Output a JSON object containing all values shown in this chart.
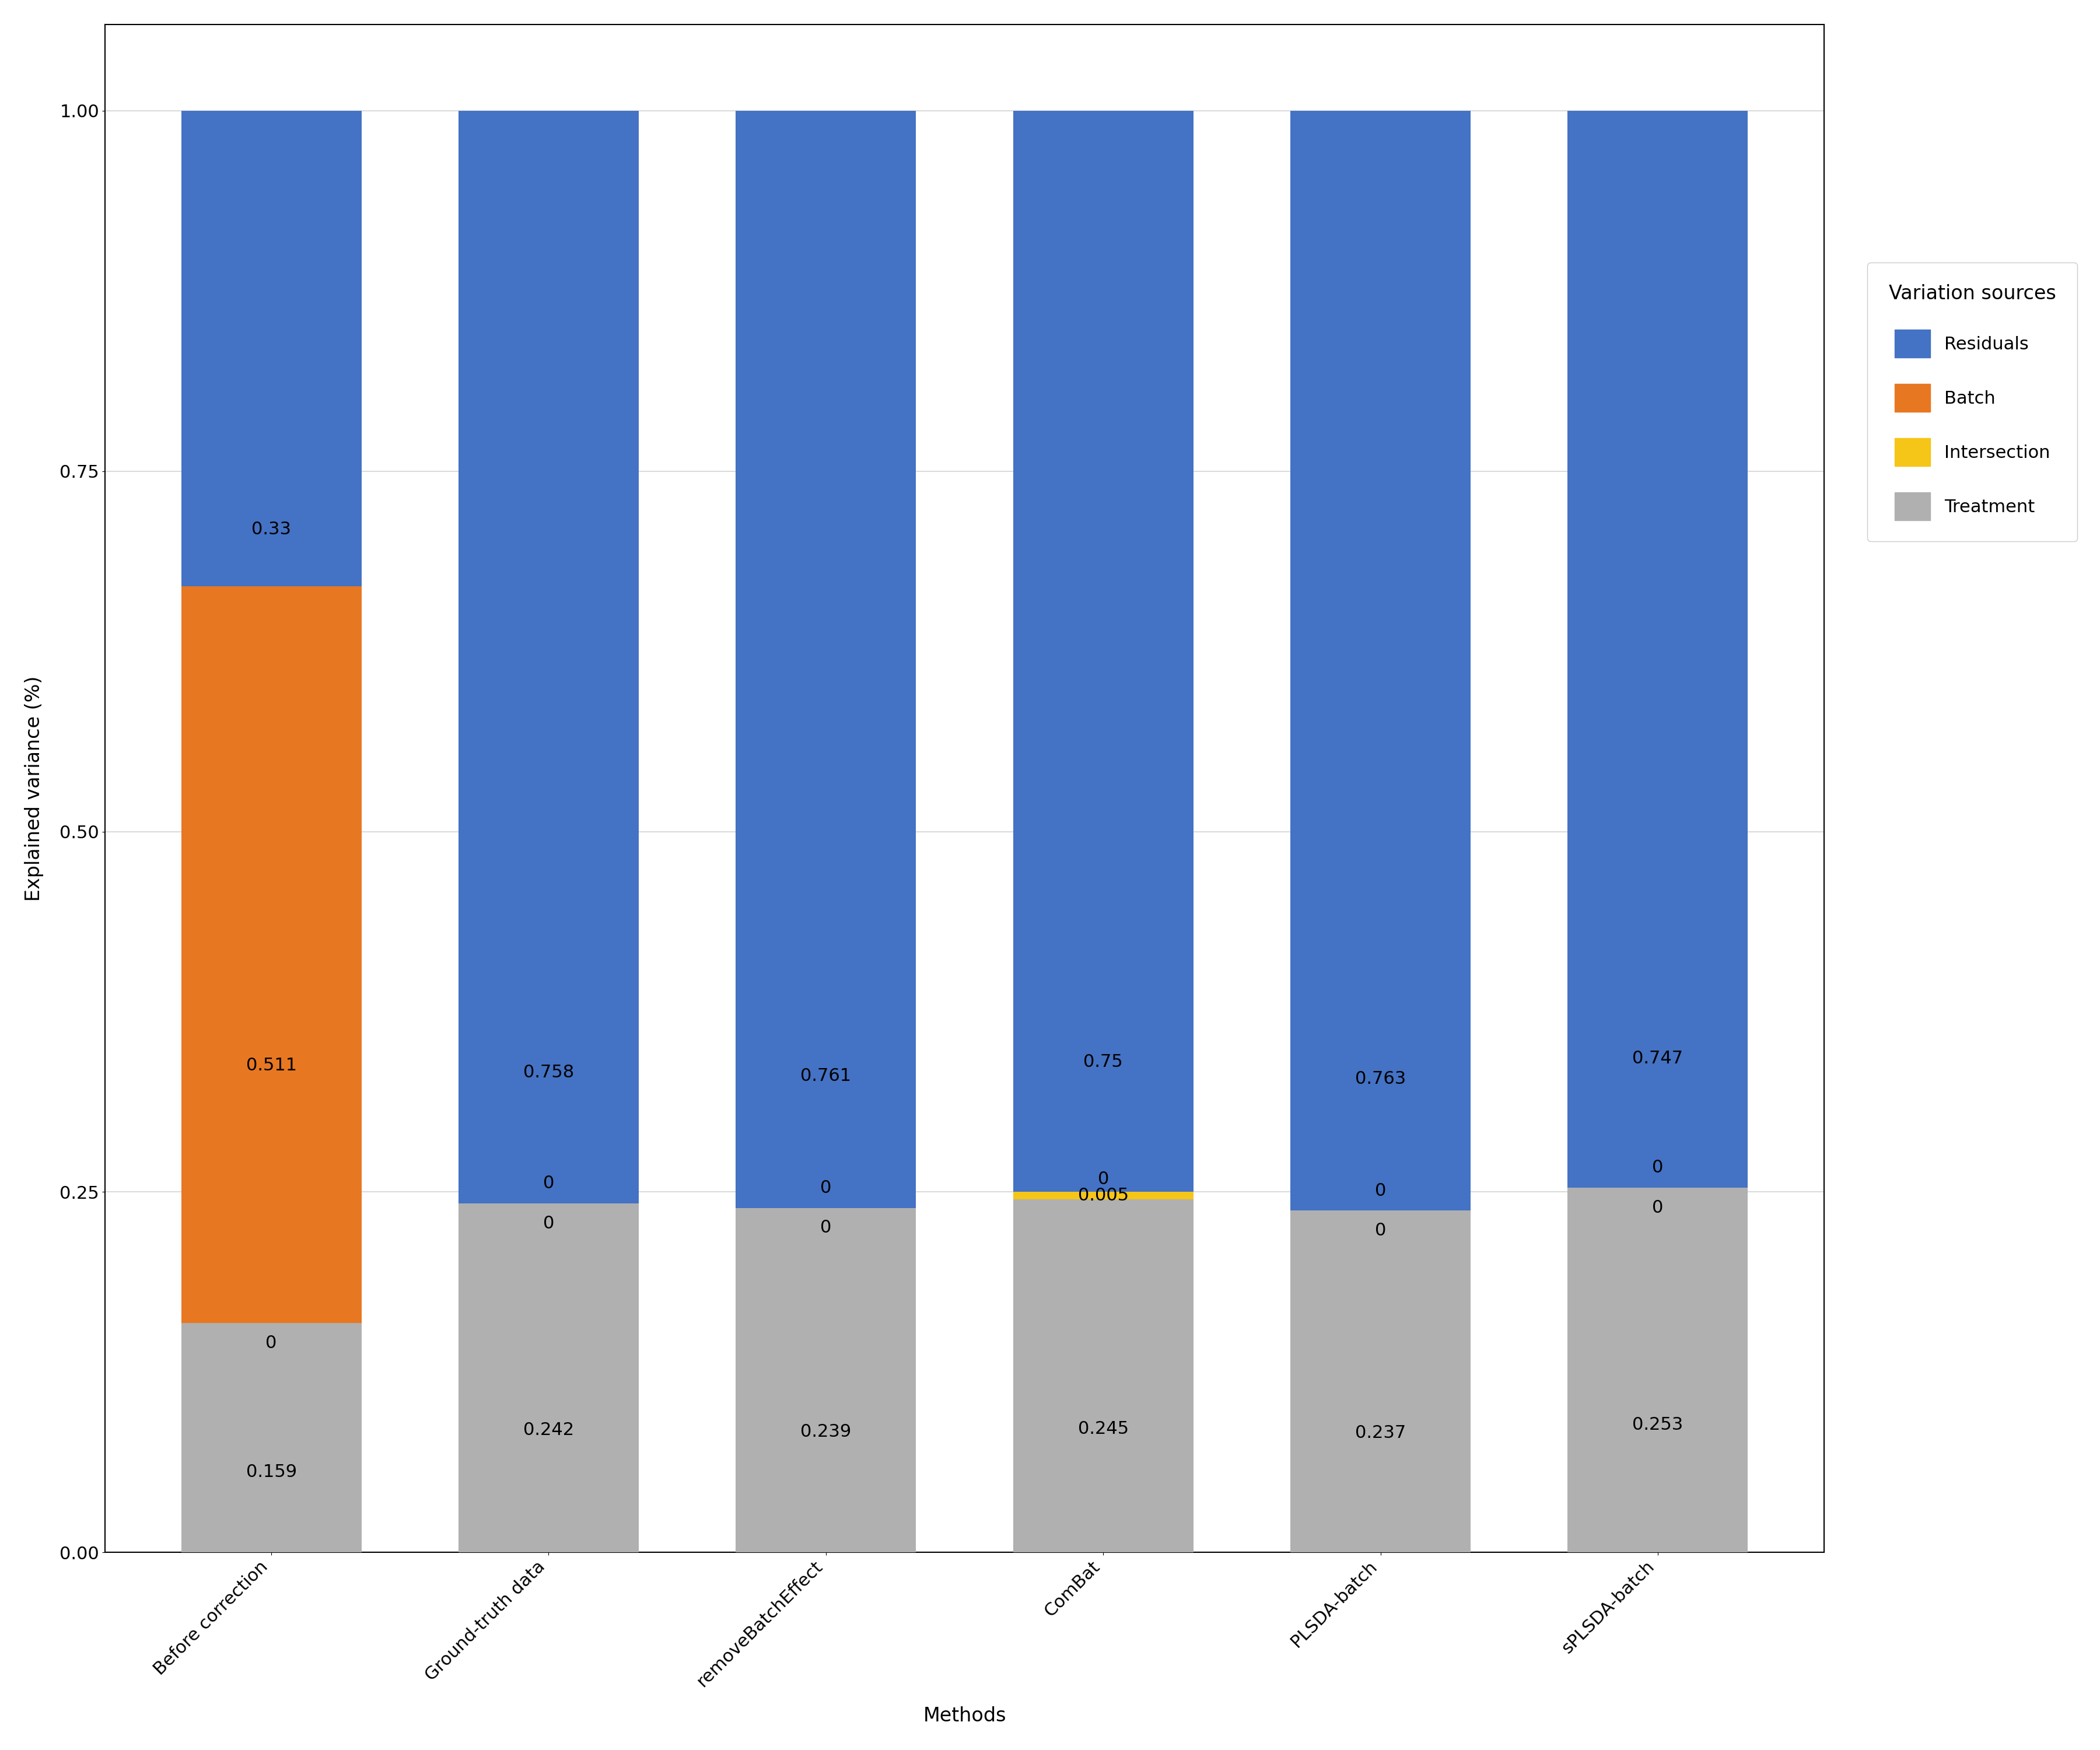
{
  "categories": [
    "Before correction",
    "Ground-truth data",
    "removeBatchEffect",
    "ComBat",
    "PLSDA-batch",
    "sPLSDA-batch"
  ],
  "treatment": [
    0.159,
    0.242,
    0.239,
    0.245,
    0.237,
    0.253
  ],
  "intersection": [
    0.0,
    0.0,
    0.0,
    0.005,
    0.0,
    0.0
  ],
  "batch": [
    0.511,
    0.0,
    0.0,
    0.0,
    0.0,
    0.0
  ],
  "residuals": [
    0.33,
    0.758,
    0.761,
    0.75,
    0.763,
    0.747
  ],
  "treatment_labels": [
    "0.159",
    "0.242",
    "0.239",
    "0.245",
    "0.237",
    "0.253"
  ],
  "intersection_labels": [
    "0",
    "0",
    "0",
    "0.005",
    "0",
    "0"
  ],
  "batch_labels": [
    "0.511",
    "0",
    "0",
    "0",
    "0",
    "0"
  ],
  "residuals_labels": [
    "0.33",
    "0.758",
    "0.761",
    "0.75",
    "0.763",
    "0.747"
  ],
  "colors": {
    "residuals": "#4472C4",
    "batch": "#E87722",
    "intersection": "#F5C518",
    "treatment": "#B0B0B0"
  },
  "xlabel": "Methods",
  "ylabel": "Explained variance (%)",
  "ylim": [
    0.0,
    1.06
  ],
  "yticks": [
    0.0,
    0.25,
    0.5,
    0.75,
    1.0
  ],
  "legend_title": "Variation sources",
  "legend_labels": [
    "Residuals",
    "Batch",
    "Intersection",
    "Treatment"
  ],
  "background_color": "#FFFFFF",
  "grid_color": "#D3D3D3",
  "bar_width": 0.65,
  "label_fontsize": 22,
  "tick_fontsize": 22,
  "legend_fontsize": 22,
  "legend_title_fontsize": 24,
  "axis_label_fontsize": 24
}
